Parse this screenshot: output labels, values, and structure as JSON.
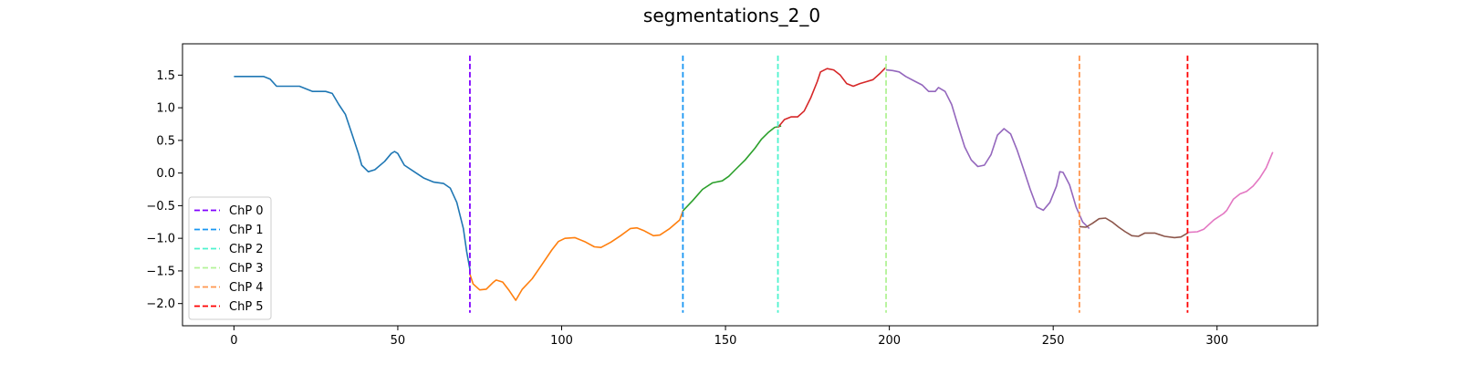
{
  "chart_data": {
    "type": "line",
    "title": "segmentations_2_0",
    "xlabel": "",
    "ylabel": "",
    "xlim": [
      -15.7,
      330.7
    ],
    "ylim": [
      -2.34,
      1.98
    ],
    "grid": false,
    "legend_position": "lower-left",
    "x_ticks": [
      0,
      50,
      100,
      150,
      200,
      250,
      300
    ],
    "y_ticks": [
      -2.0,
      -1.5,
      -1.0,
      -0.5,
      0.0,
      0.5,
      1.0,
      1.5
    ],
    "x_tick_labels": [
      "0",
      "50",
      "100",
      "150",
      "200",
      "250",
      "300"
    ],
    "y_tick_labels": [
      "−2.0",
      "−1.5",
      "−1.0",
      "−0.5",
      "0.0",
      "0.5",
      "1.0",
      "1.5"
    ],
    "series": [
      {
        "color": "#1f77b4",
        "points": [
          [
            0,
            1.48
          ],
          [
            9,
            1.48
          ],
          [
            11,
            1.44
          ],
          [
            13,
            1.33
          ],
          [
            20,
            1.33
          ],
          [
            22,
            1.29
          ],
          [
            24,
            1.25
          ],
          [
            28,
            1.25
          ],
          [
            30,
            1.22
          ],
          [
            32,
            1.05
          ],
          [
            34,
            0.9
          ],
          [
            36,
            0.6
          ],
          [
            38,
            0.3
          ],
          [
            39,
            0.12
          ],
          [
            41,
            0.02
          ],
          [
            43,
            0.05
          ],
          [
            46,
            0.18
          ],
          [
            48,
            0.3
          ],
          [
            49,
            0.33
          ],
          [
            50,
            0.3
          ],
          [
            52,
            0.12
          ],
          [
            55,
            0.02
          ],
          [
            58,
            -0.08
          ],
          [
            61,
            -0.14
          ],
          [
            64,
            -0.16
          ],
          [
            66,
            -0.23
          ],
          [
            68,
            -0.45
          ],
          [
            70,
            -0.85
          ],
          [
            71,
            -1.2
          ],
          [
            72,
            -1.48
          ]
        ]
      },
      {
        "color": "#ff7f0e",
        "points": [
          [
            72,
            -1.55
          ],
          [
            73,
            -1.7
          ],
          [
            75,
            -1.79
          ],
          [
            77,
            -1.78
          ],
          [
            79,
            -1.68
          ],
          [
            80,
            -1.64
          ],
          [
            82,
            -1.67
          ],
          [
            84,
            -1.8
          ],
          [
            86,
            -1.95
          ],
          [
            88,
            -1.78
          ],
          [
            91,
            -1.62
          ],
          [
            94,
            -1.4
          ],
          [
            97,
            -1.18
          ],
          [
            99,
            -1.05
          ],
          [
            101,
            -1.0
          ],
          [
            104,
            -0.99
          ],
          [
            107,
            -1.05
          ],
          [
            110,
            -1.13
          ],
          [
            112,
            -1.14
          ],
          [
            115,
            -1.06
          ],
          [
            118,
            -0.96
          ],
          [
            121,
            -0.85
          ],
          [
            123,
            -0.84
          ],
          [
            125,
            -0.88
          ],
          [
            128,
            -0.96
          ],
          [
            130,
            -0.95
          ],
          [
            133,
            -0.85
          ],
          [
            136,
            -0.72
          ],
          [
            137,
            -0.58
          ]
        ]
      },
      {
        "color": "#2ca02c",
        "points": [
          [
            137,
            -0.58
          ],
          [
            140,
            -0.42
          ],
          [
            143,
            -0.25
          ],
          [
            146,
            -0.15
          ],
          [
            149,
            -0.12
          ],
          [
            151,
            -0.05
          ],
          [
            153,
            0.05
          ],
          [
            156,
            0.2
          ],
          [
            159,
            0.38
          ],
          [
            161,
            0.52
          ],
          [
            163,
            0.62
          ],
          [
            165,
            0.7
          ],
          [
            167,
            0.72
          ]
        ]
      },
      {
        "color": "#d62728",
        "points": [
          [
            166,
            0.7
          ],
          [
            168,
            0.82
          ],
          [
            170,
            0.86
          ],
          [
            172,
            0.86
          ],
          [
            174,
            0.95
          ],
          [
            176,
            1.15
          ],
          [
            178,
            1.4
          ],
          [
            179,
            1.55
          ],
          [
            181,
            1.6
          ],
          [
            183,
            1.58
          ],
          [
            185,
            1.5
          ],
          [
            187,
            1.37
          ],
          [
            189,
            1.33
          ],
          [
            191,
            1.37
          ],
          [
            193,
            1.4
          ],
          [
            195,
            1.43
          ],
          [
            197,
            1.52
          ],
          [
            199,
            1.62
          ]
        ]
      },
      {
        "color": "#9467bd",
        "points": [
          [
            199,
            1.58
          ],
          [
            201,
            1.57
          ],
          [
            203,
            1.55
          ],
          [
            205,
            1.48
          ],
          [
            208,
            1.4
          ],
          [
            210,
            1.35
          ],
          [
            212,
            1.25
          ],
          [
            214,
            1.25
          ],
          [
            215,
            1.31
          ],
          [
            217,
            1.25
          ],
          [
            219,
            1.05
          ],
          [
            221,
            0.72
          ],
          [
            223,
            0.4
          ],
          [
            225,
            0.2
          ],
          [
            227,
            0.1
          ],
          [
            229,
            0.12
          ],
          [
            231,
            0.28
          ],
          [
            233,
            0.58
          ],
          [
            235,
            0.68
          ],
          [
            237,
            0.6
          ],
          [
            239,
            0.35
          ],
          [
            241,
            0.05
          ],
          [
            243,
            -0.25
          ],
          [
            245,
            -0.52
          ],
          [
            247,
            -0.57
          ],
          [
            249,
            -0.45
          ],
          [
            251,
            -0.2
          ],
          [
            252,
            0.02
          ],
          [
            253,
            0.01
          ],
          [
            255,
            -0.18
          ],
          [
            257,
            -0.52
          ],
          [
            259,
            -0.75
          ],
          [
            261,
            -0.85
          ]
        ]
      },
      {
        "color": "#8c564b",
        "points": [
          [
            258,
            -0.82
          ],
          [
            260,
            -0.83
          ],
          [
            262,
            -0.77
          ],
          [
            264,
            -0.7
          ],
          [
            266,
            -0.69
          ],
          [
            268,
            -0.75
          ],
          [
            270,
            -0.83
          ],
          [
            272,
            -0.9
          ],
          [
            274,
            -0.96
          ],
          [
            276,
            -0.97
          ],
          [
            278,
            -0.92
          ],
          [
            281,
            -0.92
          ],
          [
            284,
            -0.97
          ],
          [
            287,
            -0.99
          ],
          [
            289,
            -0.98
          ],
          [
            291,
            -0.92
          ]
        ]
      },
      {
        "color": "#e377c2",
        "points": [
          [
            291,
            -0.91
          ],
          [
            294,
            -0.9
          ],
          [
            296,
            -0.86
          ],
          [
            299,
            -0.72
          ],
          [
            302,
            -0.62
          ],
          [
            303,
            -0.57
          ],
          [
            305,
            -0.4
          ],
          [
            307,
            -0.32
          ],
          [
            309,
            -0.28
          ],
          [
            311,
            -0.2
          ],
          [
            313,
            -0.08
          ],
          [
            315,
            0.08
          ],
          [
            317,
            0.32
          ]
        ]
      }
    ],
    "changepoints": [
      {
        "label": "ChP 0",
        "x": 72,
        "color": "#8000ff"
      },
      {
        "label": "ChP 1",
        "x": 137,
        "color": "#1996f3"
      },
      {
        "label": "ChP 2",
        "x": 166,
        "color": "#4df3ce"
      },
      {
        "label": "ChP 3",
        "x": 199,
        "color": "#b2f396"
      },
      {
        "label": "ChP 4",
        "x": 258,
        "color": "#ff964f"
      },
      {
        "label": "ChP 5",
        "x": 291,
        "color": "#ff0000"
      }
    ]
  }
}
